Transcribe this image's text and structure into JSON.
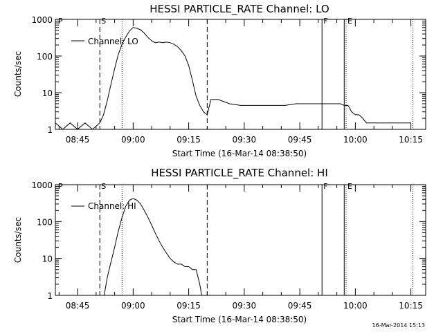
{
  "footer": {
    "timestamp": "16-Mar-2014 15:13"
  },
  "chart_data": [
    {
      "type": "line",
      "title": "HESSI PARTICLE_RATE Channel: LO",
      "xlabel": "Start Time (16-Mar-14 08:38:50)",
      "ylabel": "Counts/sec",
      "yscale": "log",
      "ylim": [
        1,
        1000
      ],
      "xlim": [
        "08:39",
        "10:19"
      ],
      "xtick_labels": [
        "08:45",
        "09:00",
        "09:15",
        "09:30",
        "09:45",
        "10:00",
        "10:15"
      ],
      "ytick_labels": [
        "1",
        "10",
        "100",
        "1000"
      ],
      "legend": {
        "position": "top-left",
        "entries": [
          "Channel: LO"
        ]
      },
      "markers": [
        {
          "label": "S",
          "time": "08:51",
          "style": "dashed"
        },
        {
          "label": "",
          "time": "08:57",
          "style": "dotted"
        },
        {
          "label": "",
          "time": "09:20",
          "style": "dashed"
        },
        {
          "label": "F",
          "time": "09:51",
          "style": "solid"
        },
        {
          "label": "",
          "time": "09:57",
          "style": "solid"
        },
        {
          "label": "E",
          "time": "09:57.5",
          "style": "dotted"
        },
        {
          "label": "",
          "time": "10:15.5",
          "style": "dotted"
        }
      ],
      "corner_label": "P",
      "series": [
        {
          "name": "Channel: LO",
          "x": [
            "08:39",
            "08:41",
            "08:43",
            "08:45",
            "08:47",
            "08:49",
            "08:51",
            "08:52",
            "08:53",
            "08:54",
            "08:55",
            "08:56",
            "08:57",
            "08:58",
            "08:59",
            "09:00",
            "09:01",
            "09:02",
            "09:03",
            "09:04",
            "09:05",
            "09:06",
            "09:07",
            "09:08",
            "09:09",
            "09:10",
            "09:11",
            "09:12",
            "09:13",
            "09:14",
            "09:15",
            "09:16",
            "09:17",
            "09:18",
            "09:19",
            "09:20",
            "09:21",
            "09:23",
            "09:26",
            "09:29",
            "09:32",
            "09:35",
            "09:38",
            "09:41",
            "09:44",
            "09:47",
            "09:50",
            "09:53",
            "09:55",
            "09:56",
            "09:57",
            "09:58",
            "09:59",
            "10:00",
            "10:01",
            "10:02",
            "10:03",
            "10:04",
            "10:05",
            "10:06",
            "10:08",
            "10:10",
            "10:12",
            "10:14",
            "10:15"
          ],
          "y": [
            1.5,
            1,
            1.5,
            1,
            1.5,
            1,
            1.5,
            2.5,
            6,
            17,
            45,
            110,
            210,
            330,
            480,
            600,
            570,
            520,
            420,
            320,
            260,
            230,
            240,
            230,
            240,
            230,
            210,
            180,
            140,
            100,
            55,
            22,
            8,
            4.5,
            3,
            2.5,
            6.5,
            6.5,
            5,
            4.5,
            4.5,
            4.5,
            4.5,
            4.5,
            5,
            5,
            5,
            5,
            5,
            5,
            4.5,
            4.5,
            3,
            2.5,
            2.5,
            2,
            1.5,
            1.5,
            1.5,
            1.5,
            1.5,
            1.5,
            1.5,
            1.5,
            1.5
          ]
        }
      ]
    },
    {
      "type": "line",
      "title": "HESSI PARTICLE_RATE Channel: HI",
      "xlabel": "Start Time (16-Mar-14 08:38:50)",
      "ylabel": "Counts/sec",
      "yscale": "log",
      "ylim": [
        1,
        1000
      ],
      "xlim": [
        "08:39",
        "10:19"
      ],
      "xtick_labels": [
        "08:45",
        "09:00",
        "09:15",
        "09:30",
        "09:45",
        "10:00",
        "10:15"
      ],
      "ytick_labels": [
        "1",
        "10",
        "100",
        "1000"
      ],
      "legend": {
        "position": "top-left",
        "entries": [
          "Channel: HI"
        ]
      },
      "markers": [
        {
          "label": "S",
          "time": "08:51",
          "style": "dashed"
        },
        {
          "label": "",
          "time": "08:57",
          "style": "dotted"
        },
        {
          "label": "",
          "time": "09:20",
          "style": "dashed"
        },
        {
          "label": "F",
          "time": "09:51",
          "style": "solid"
        },
        {
          "label": "",
          "time": "09:57",
          "style": "solid"
        },
        {
          "label": "E",
          "time": "09:57.5",
          "style": "dotted"
        },
        {
          "label": "",
          "time": "10:15.5",
          "style": "dotted"
        }
      ],
      "corner_label": "P",
      "series": [
        {
          "name": "Channel: HI",
          "x": [
            "08:52.2",
            "08:52.6",
            "08:53",
            "08:54",
            "08:55",
            "08:56",
            "08:57",
            "08:58",
            "08:59",
            "09:00",
            "09:01",
            "09:02",
            "09:03",
            "09:04",
            "09:05",
            "09:06",
            "09:07",
            "09:08",
            "09:09",
            "09:10",
            "09:11",
            "09:12",
            "09:13",
            "09:14",
            "09:15",
            "09:16",
            "09:17",
            "09:18",
            "09:18.5"
          ],
          "y": [
            1,
            1.8,
            3,
            8,
            20,
            55,
            130,
            260,
            380,
            420,
            380,
            300,
            200,
            130,
            80,
            48,
            30,
            20,
            14,
            10,
            8,
            7,
            7,
            6,
            6,
            5,
            5,
            2,
            1
          ]
        }
      ]
    }
  ]
}
